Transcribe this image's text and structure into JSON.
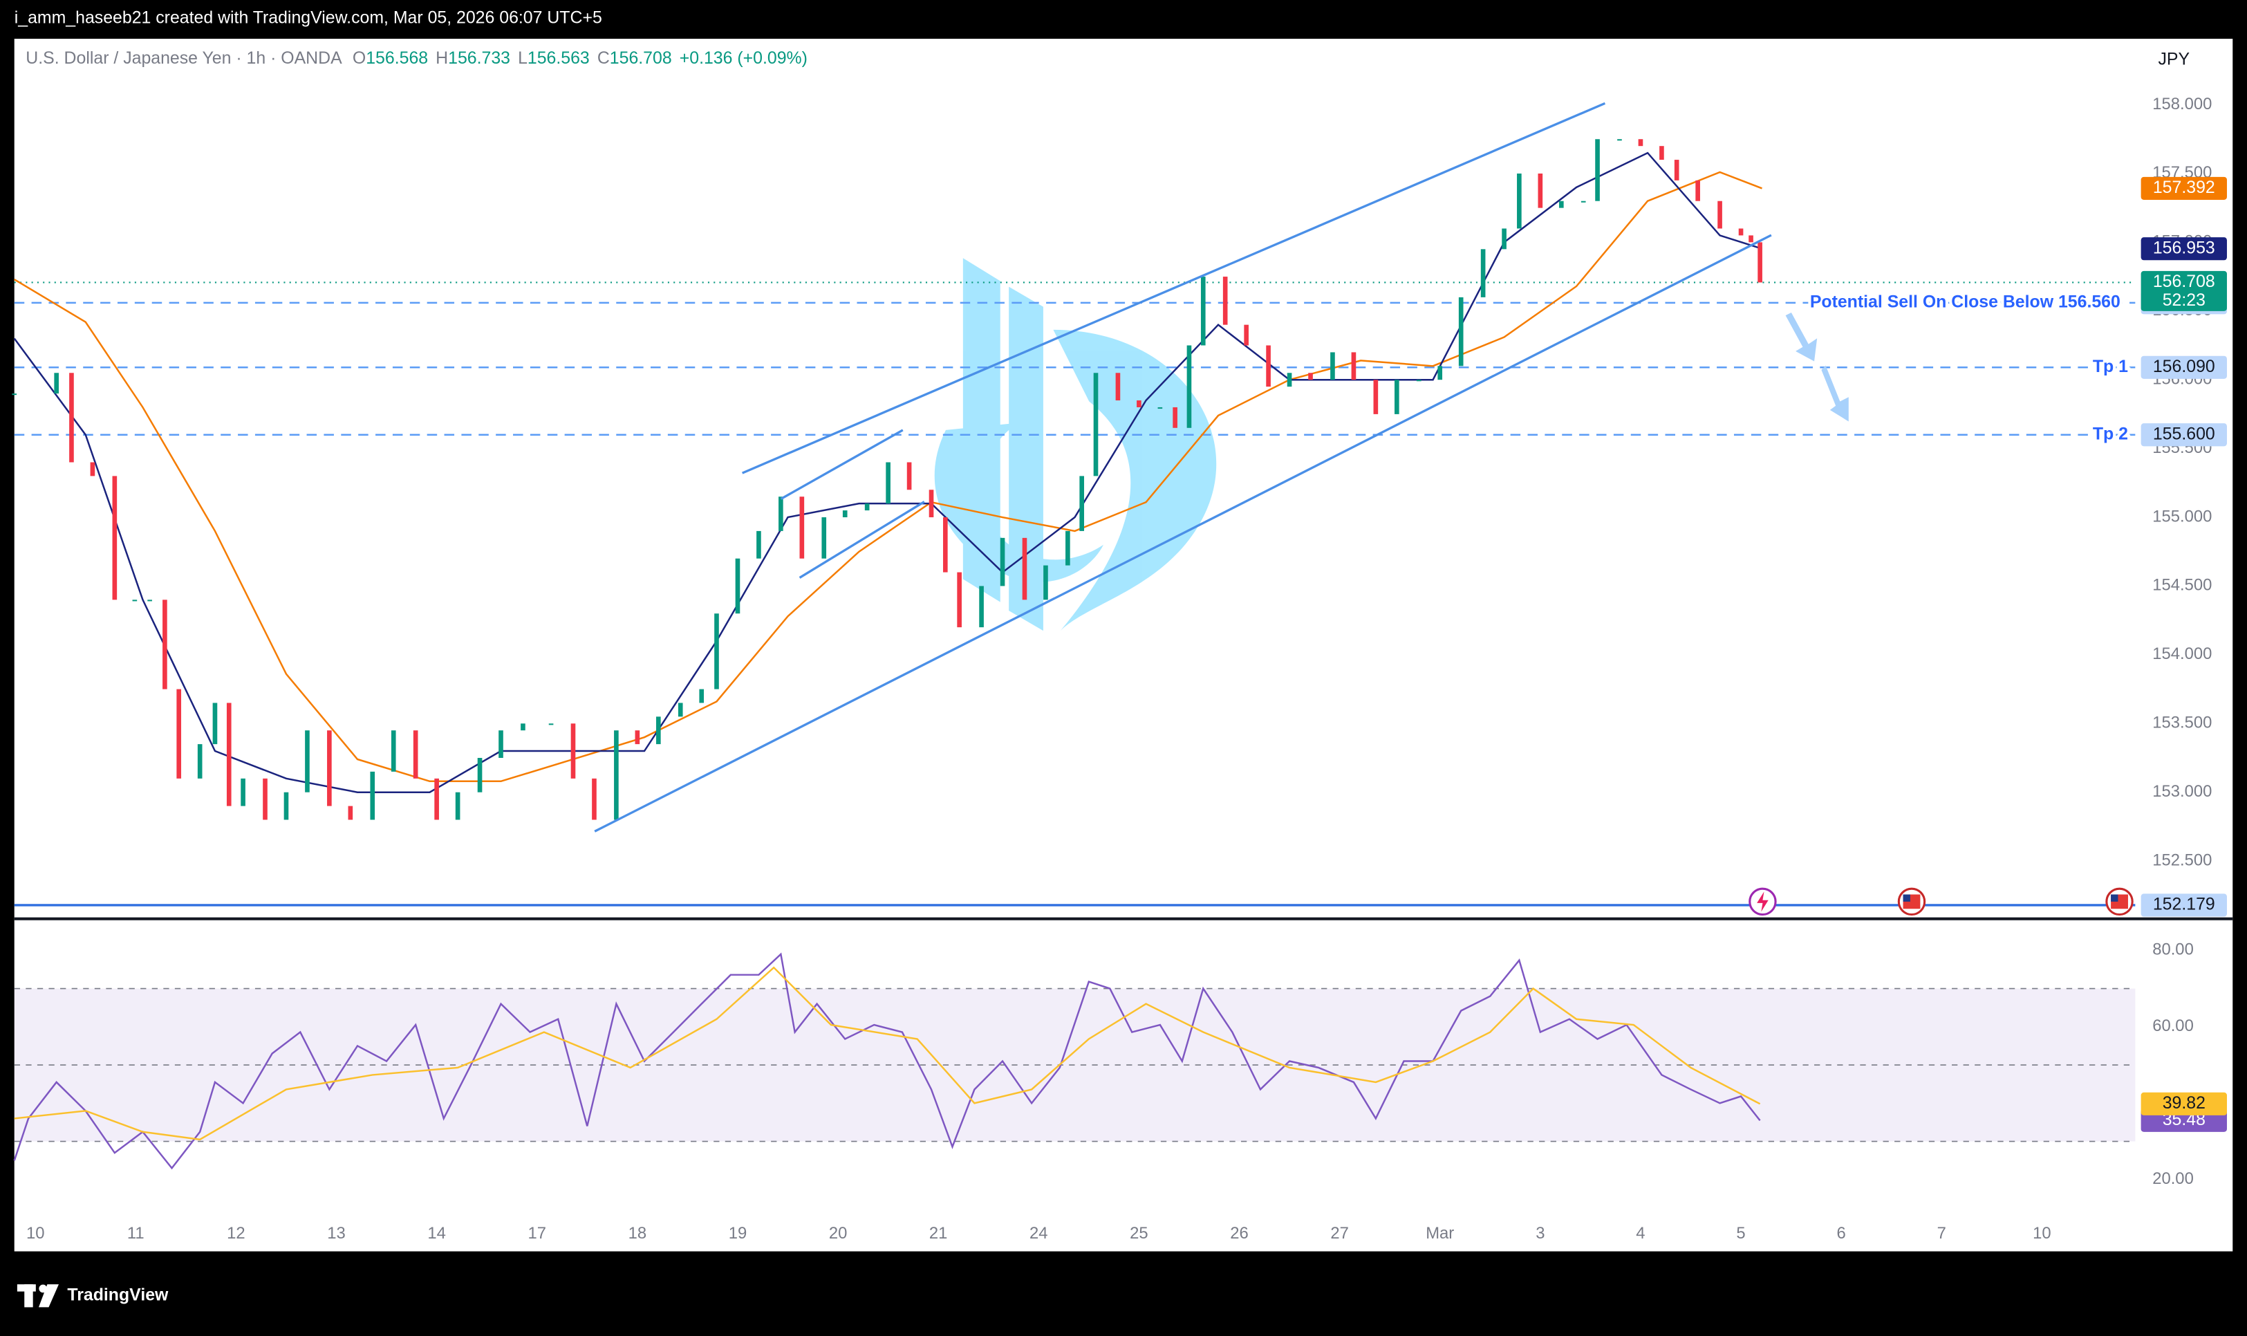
{
  "header": {
    "attribution": "i_amm_haseeb21 created with TradingView.com, Mar 05, 2026 06:07 UTC+5",
    "symbol": "U.S. Dollar / Japanese Yen · 1h · OANDA",
    "ohlc": [
      {
        "label": "O",
        "value": 156.568
      },
      {
        "label": "H",
        "value": 156.733
      },
      {
        "label": "L",
        "value": 156.563
      },
      {
        "label": "C",
        "value": 156.708
      }
    ],
    "change": "+0.136 (+0.09%)",
    "currency": "JPY"
  },
  "brand": "TradingView",
  "chart_data": [
    {
      "type": "candlestick",
      "up_color": "#089981",
      "down_color": "#f23645",
      "xlim": [
        -0.21,
        20.93
      ],
      "ylim": [
        152.09,
        158.48
      ],
      "yticks": [
        {
          "value": 152.5,
          "label": "152.500"
        },
        {
          "value": 153,
          "label": "153.000"
        },
        {
          "value": 153.5,
          "label": "153.500"
        },
        {
          "value": 154,
          "label": "154.000"
        },
        {
          "value": 154.5,
          "label": "154.500"
        },
        {
          "value": 155,
          "label": "155.000"
        },
        {
          "value": 155.5,
          "label": "155.500"
        },
        {
          "value": 156,
          "label": "156.000"
        },
        {
          "value": 156.5,
          "label": "156.500"
        },
        {
          "value": 157,
          "label": "157.000"
        },
        {
          "value": 157.5,
          "label": "157.500"
        },
        {
          "value": 158,
          "label": "158.000"
        }
      ],
      "x": [
        -0.21,
        0.21,
        0.36,
        0.57,
        0.79,
        0.99,
        1.14,
        1.29,
        1.43,
        1.64,
        1.79,
        1.93,
        2.07,
        2.29,
        2.5,
        2.71,
        2.93,
        3.14,
        3.36,
        3.57,
        3.79,
        4.0,
        4.21,
        4.43,
        4.64,
        4.86,
        5.14,
        5.36,
        5.57,
        5.79,
        6.0,
        6.21,
        6.43,
        6.64,
        6.79,
        7.0,
        7.21,
        7.43,
        7.64,
        7.86,
        8.07,
        8.29,
        8.5,
        8.71,
        8.93,
        9.07,
        9.21,
        9.43,
        9.64,
        9.86,
        10.07,
        10.29,
        10.43,
        10.57,
        10.79,
        11.0,
        11.21,
        11.36,
        11.5,
        11.64,
        11.86,
        12.07,
        12.29,
        12.5,
        12.71,
        12.93,
        13.14,
        13.36,
        13.57,
        13.79,
        14.0,
        14.21,
        14.43,
        14.64,
        14.79,
        15.0,
        15.21,
        15.43,
        15.57,
        15.79,
        16.0,
        16.21,
        16.36,
        16.57,
        16.79,
        17.0,
        17.1,
        17.19
      ],
      "values": [
        155.9,
        156.05,
        155.4,
        155.3,
        154.4,
        154.4,
        154.4,
        153.75,
        153.1,
        153.35,
        153.65,
        152.9,
        153.1,
        152.8,
        153.0,
        153.45,
        152.9,
        152.8,
        153.15,
        153.45,
        153.1,
        152.8,
        153.0,
        153.25,
        153.45,
        153.5,
        153.5,
        153.1,
        152.8,
        153.45,
        153.35,
        153.55,
        153.65,
        153.75,
        154.3,
        154.7,
        154.9,
        155.15,
        154.7,
        155.0,
        155.05,
        155.1,
        155.4,
        155.2,
        155.0,
        154.6,
        154.2,
        154.5,
        154.85,
        154.4,
        154.65,
        154.9,
        155.3,
        156.05,
        155.85,
        155.8,
        155.8,
        155.65,
        156.25,
        156.75,
        156.4,
        156.25,
        155.95,
        156.05,
        156.0,
        156.2,
        156.0,
        155.75,
        156.0,
        156.0,
        156.1,
        156.6,
        156.95,
        157.1,
        157.5,
        157.25,
        157.3,
        157.3,
        157.75,
        157.75,
        157.7,
        157.6,
        157.45,
        157.3,
        157.1,
        157.05,
        157.0,
        156.708
      ],
      "series": [
        {
          "color": "#f57c00",
          "tag_text": "#ffffff",
          "x": [
            -0.21,
            0.5,
            1.07,
            1.79,
            2.5,
            3.21,
            3.93,
            4.64,
            5.36,
            6.07,
            6.79,
            7.5,
            8.21,
            8.93,
            9.64,
            10.36,
            11.07,
            11.79,
            12.5,
            13.21,
            13.93,
            14.64,
            15.36,
            16.07,
            16.79,
            17.21
          ],
          "values": [
            156.73,
            156.42,
            155.8,
            154.9,
            153.86,
            153.24,
            153.08,
            153.08,
            153.24,
            153.4,
            153.66,
            154.28,
            154.75,
            155.11,
            155.0,
            154.9,
            155.11,
            155.74,
            156.0,
            156.14,
            156.1,
            156.31,
            156.68,
            157.3,
            157.51,
            157.392
          ]
        },
        {
          "color": "#1a237e",
          "tag_text": "#ffffff",
          "x": [
            -0.21,
            0.5,
            1.07,
            1.79,
            2.5,
            3.21,
            3.93,
            4.64,
            5.36,
            6.07,
            6.79,
            7.5,
            8.21,
            8.93,
            9.64,
            10.36,
            11.07,
            11.79,
            12.5,
            13.21,
            13.93,
            14.64,
            15.36,
            16.07,
            16.79,
            17.21
          ],
          "values": [
            156.3,
            155.6,
            154.4,
            153.3,
            153.1,
            153.0,
            153.0,
            153.3,
            153.3,
            153.3,
            154.1,
            155.0,
            155.1,
            155.1,
            154.6,
            155.0,
            155.85,
            156.4,
            156.0,
            156.0,
            156.0,
            157.0,
            157.4,
            157.65,
            157.05,
            156.953
          ]
        }
      ],
      "last": {
        "value": 156.708,
        "countdown": "52:23",
        "color": "#089981"
      },
      "levels": [
        {
          "value": 156.56,
          "label": "156.560",
          "text": "Potential Sell On Close Below 156.560"
        },
        {
          "value": 156.09,
          "label": "156.090",
          "text": "Tp 1"
        },
        {
          "value": 155.6,
          "label": "155.600",
          "text": "Tp 2"
        }
      ],
      "support": {
        "value": 152.179
      }
    },
    {
      "type": "line",
      "xlim": [
        -0.21,
        20.93
      ],
      "ylim": [
        10.6,
        86.75
      ],
      "yticks": [
        {
          "value": 20,
          "label": "20.00"
        },
        {
          "value": 60,
          "label": "60.00"
        },
        {
          "value": 80,
          "label": "80.00"
        }
      ],
      "bands": [
        30,
        50,
        70
      ],
      "xticks": [
        {
          "value": 0,
          "label": "10"
        },
        {
          "value": 1,
          "label": "11"
        },
        {
          "value": 2,
          "label": "12"
        },
        {
          "value": 3,
          "label": "13"
        },
        {
          "value": 4,
          "label": "14"
        },
        {
          "value": 5,
          "label": "17"
        },
        {
          "value": 6,
          "label": "18"
        },
        {
          "value": 7,
          "label": "19"
        },
        {
          "value": 8,
          "label": "20"
        },
        {
          "value": 9,
          "label": "21"
        },
        {
          "value": 10,
          "label": "24"
        },
        {
          "value": 11,
          "label": "25"
        },
        {
          "value": 12,
          "label": "26"
        },
        {
          "value": 13,
          "label": "27"
        },
        {
          "value": 14,
          "label": "Mar"
        },
        {
          "value": 15,
          "label": "3"
        },
        {
          "value": 16,
          "label": "4"
        },
        {
          "value": 17,
          "label": "5"
        },
        {
          "value": 18,
          "label": "6"
        },
        {
          "value": 19,
          "label": "7"
        },
        {
          "value": 20,
          "label": "10"
        }
      ],
      "series": [
        {
          "color": "#7e57c2",
          "tag_text": "#ffffff",
          "x": [
            -0.21,
            -0.07,
            0.21,
            0.5,
            0.79,
            1.07,
            1.36,
            1.64,
            1.79,
            2.07,
            2.36,
            2.64,
            2.93,
            3.21,
            3.5,
            3.79,
            4.07,
            4.36,
            4.64,
            4.93,
            5.21,
            5.5,
            5.79,
            6.07,
            6.36,
            6.64,
            6.93,
            7.21,
            7.43,
            7.57,
            7.79,
            8.07,
            8.36,
            8.64,
            8.93,
            9.14,
            9.36,
            9.64,
            9.93,
            10.21,
            10.5,
            10.71,
            10.93,
            11.21,
            11.43,
            11.64,
            11.93,
            12.21,
            12.5,
            12.79,
            13.14,
            13.36,
            13.64,
            13.93,
            14.21,
            14.5,
            14.79,
            15.0,
            15.29,
            15.57,
            15.86,
            16.21,
            16.5,
            16.79,
            17.0,
            17.19
          ],
          "values": [
            25,
            36,
            45.5,
            38,
            27,
            32.5,
            23,
            32.5,
            45.5,
            40,
            53,
            58.6,
            43.6,
            55,
            51,
            60.5,
            36,
            51,
            66,
            58.6,
            62,
            34,
            66,
            51,
            58.6,
            66,
            73.6,
            73.6,
            79,
            58.6,
            66,
            56.8,
            60.5,
            58.6,
            43.6,
            28.6,
            43.6,
            51,
            40,
            49.3,
            71.8,
            70,
            58.6,
            60.5,
            51,
            70,
            58.6,
            43.6,
            51,
            49.3,
            45.5,
            36,
            51,
            51,
            64.2,
            68,
            77.4,
            58.6,
            62,
            56.8,
            60.5,
            47.4,
            43.6,
            40,
            41.8,
            35.48
          ]
        },
        {
          "color": "#fbc02d",
          "tag_text": "#131722",
          "x": [
            -0.21,
            0.5,
            1.07,
            1.64,
            2.5,
            3.36,
            4.21,
            5.07,
            5.93,
            6.79,
            7.36,
            7.93,
            8.79,
            9.36,
            9.93,
            10.5,
            11.07,
            11.64,
            12.5,
            13.36,
            13.93,
            14.5,
            14.93,
            15.36,
            15.93,
            16.5,
            17.19
          ],
          "values": [
            36,
            38,
            32.5,
            30.5,
            43.6,
            47.4,
            49.3,
            58.6,
            49.3,
            62,
            75.5,
            60.5,
            56.8,
            40,
            43.6,
            56.8,
            66,
            58.6,
            49.3,
            45.5,
            51,
            58.6,
            70,
            62,
            60.5,
            49.3,
            39.82
          ]
        }
      ]
    }
  ]
}
